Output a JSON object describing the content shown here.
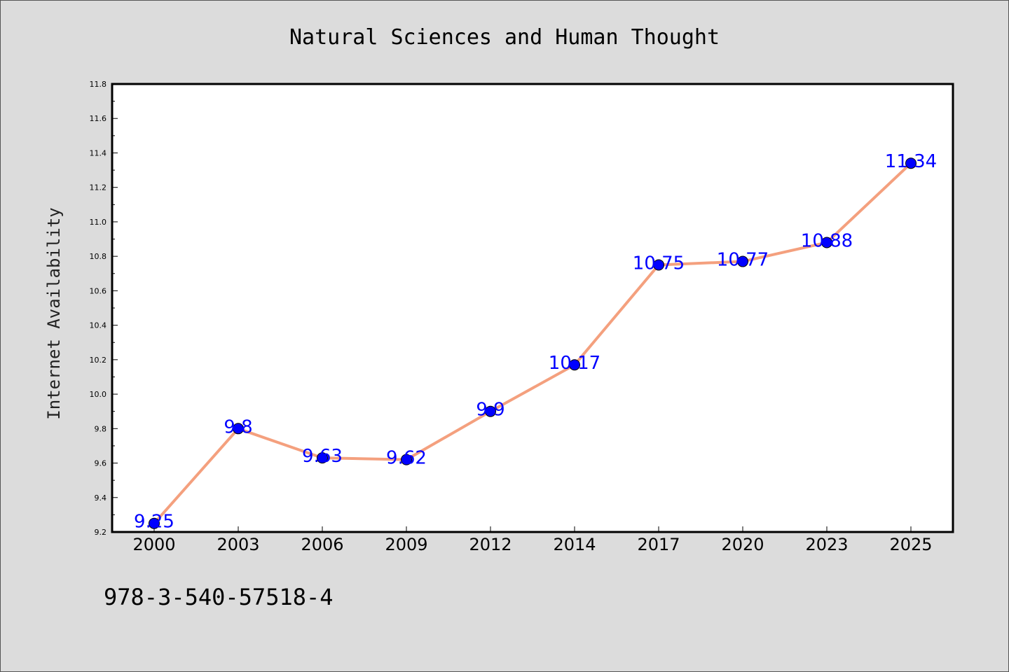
{
  "chart_data": {
    "type": "line",
    "title": "Natural Sciences and Human Thought",
    "xlabel": "",
    "ylabel": "Internet Availability",
    "categories": [
      "2000",
      "2003",
      "2006",
      "2009",
      "2012",
      "2014",
      "2017",
      "2020",
      "2023",
      "2025"
    ],
    "values": [
      9.25,
      9.8,
      9.63,
      9.62,
      9.9,
      10.17,
      10.75,
      10.77,
      10.88,
      11.34
    ],
    "data_labels": [
      "9.25",
      "9.8",
      "9.63",
      "9.62",
      "9.9",
      "10.17",
      "10.75",
      "10.77",
      "10.88",
      "11.34"
    ],
    "ylim": [
      9.2,
      11.8
    ],
    "yticks": [
      "9.2",
      "9.4",
      "9.6",
      "9.8",
      "10.0",
      "10.2",
      "10.4",
      "10.6",
      "10.8",
      "11.0",
      "11.2",
      "11.4",
      "11.6",
      "11.8"
    ],
    "grid": false,
    "legend": "none",
    "colors": {
      "line": "#f4a07e",
      "marker": "#0000ff",
      "data_label": "#0000ff",
      "background": "#dcdcdc",
      "plot_area": "#ffffff"
    }
  },
  "footer_text": "978-3-540-57518-4"
}
